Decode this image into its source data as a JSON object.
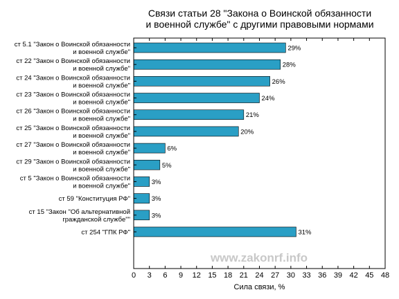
{
  "chart_data": {
    "type": "bar",
    "orientation": "horizontal",
    "title": "Связи статьи 28 \"Закона о Воинской обязанности\nи военной службе\" с другими правовыми нормами",
    "xlabel": "Сила связи, %",
    "ylabel": "",
    "xlim": [
      0,
      48
    ],
    "xticks": [
      0,
      3,
      6,
      9,
      12,
      15,
      18,
      21,
      24,
      27,
      30,
      33,
      36,
      39,
      42,
      45,
      48
    ],
    "grid": false,
    "bar_color": "#2a9fc5",
    "categories": [
      "ст 5.1 \"Закон о Воинской обязанности\nи военной службе\"",
      "ст 22 \"Закон о Воинской обязанности\nи военной службе\"",
      "ст 24 \"Закон о Воинской обязанности\nи военной службе\"",
      "ст 23 \"Закон о Воинской обязанности\nи военной службе\"",
      "ст 26 \"Закон о Воинской обязанности\nи военной службе\"",
      "ст 25 \"Закон о Воинской обязанности\nи военной службе\"",
      "ст 27 \"Закон о Воинской обязанности\nи военной службе\"",
      "ст 29 \"Закон о Воинской обязанности\nи военной службе\"",
      "ст 5 \"Закон о Воинской обязанности\nи военной службе\"",
      "ст 59 \"Конституция РФ\"",
      "ст 15 \"Закон \"Об альтернативной\nгражданской службе\"\"",
      "ст 254 \"ГПК РФ\""
    ],
    "values": [
      29,
      28,
      26,
      24,
      21,
      20,
      6,
      5,
      3,
      3,
      3,
      31
    ],
    "value_labels": [
      "29%",
      "28%",
      "26%",
      "24%",
      "21%",
      "20%",
      "6%",
      "5%",
      "3%",
      "3%",
      "3%",
      "31%"
    ]
  },
  "watermark": "www.zakonrf.info"
}
